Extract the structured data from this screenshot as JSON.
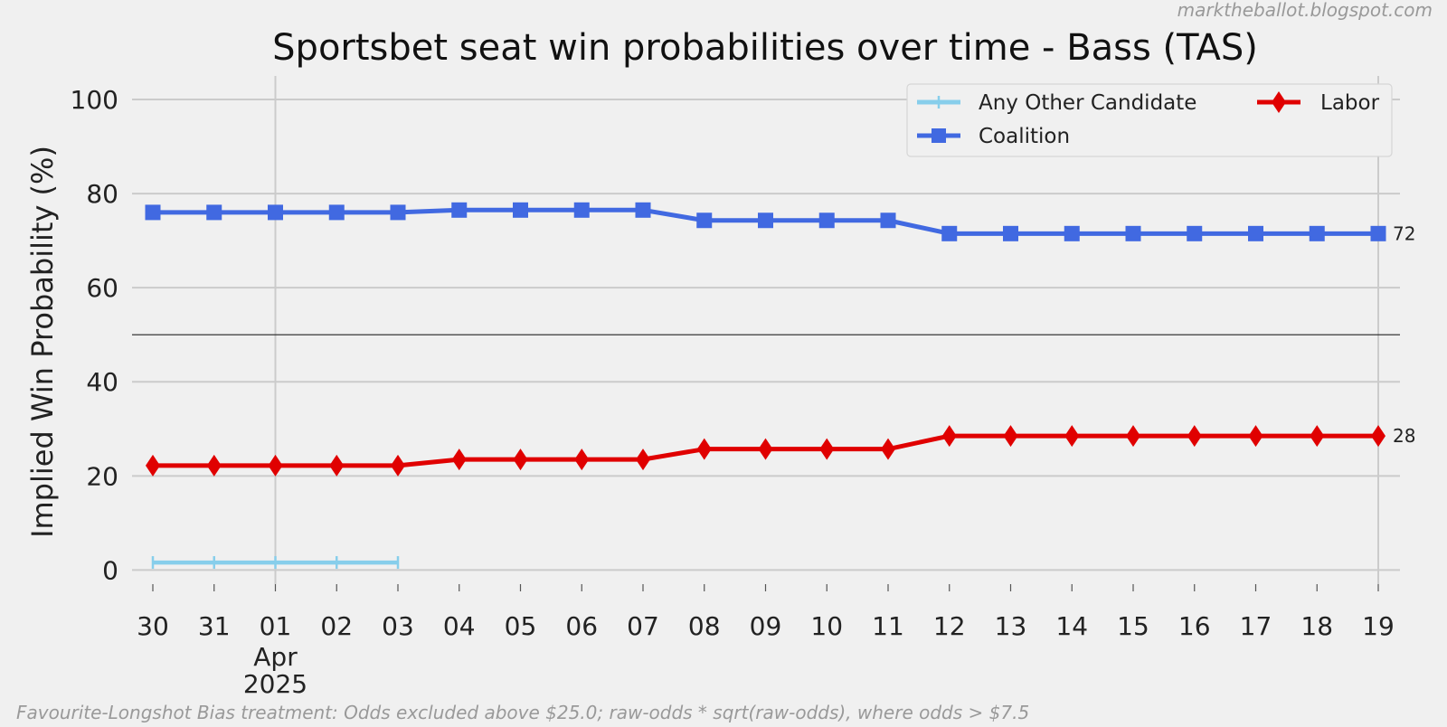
{
  "watermark": "marktheballot.blogspot.com",
  "footnote": "Favourite-Longshot Bias treatment: Odds excluded above $25.0; raw-odds * sqrt(raw-odds), where odds > $7.5",
  "chart_data": {
    "type": "line",
    "title": "Sportsbet seat win probabilities over time - Bass (TAS)",
    "xlabel": "",
    "ylabel": "Implied Win Probability (%)",
    "ylim": [
      -3,
      105
    ],
    "yticks": [
      0,
      20,
      40,
      60,
      80,
      100
    ],
    "reference_line": 50,
    "grid": true,
    "legend_position": "top-right",
    "categories": [
      "30",
      "31",
      "01",
      "02",
      "03",
      "04",
      "05",
      "06",
      "07",
      "08",
      "09",
      "10",
      "11",
      "12",
      "13",
      "14",
      "15",
      "16",
      "17",
      "18",
      "19"
    ],
    "x_secondary_labels": {
      "month": "Apr",
      "year": "2025",
      "under_tick": "01"
    },
    "series": [
      {
        "name": "Any Other Candidate",
        "color": "#87ceeb",
        "marker": "plus",
        "values": [
          1.6,
          1.6,
          1.6,
          1.6,
          1.6,
          null,
          null,
          null,
          null,
          null,
          null,
          null,
          null,
          null,
          null,
          null,
          null,
          null,
          null,
          null,
          null
        ]
      },
      {
        "name": "Coalition",
        "color": "#4169e1",
        "marker": "square",
        "values": [
          76.0,
          76.0,
          76.0,
          76.0,
          76.0,
          76.5,
          76.5,
          76.5,
          76.5,
          74.3,
          74.3,
          74.3,
          74.3,
          71.5,
          71.5,
          71.5,
          71.5,
          71.5,
          71.5,
          71.5,
          71.5
        ],
        "end_label": "72"
      },
      {
        "name": "Labor",
        "color": "#e00000",
        "marker": "diamond",
        "values": [
          22.2,
          22.2,
          22.2,
          22.2,
          22.2,
          23.5,
          23.5,
          23.5,
          23.5,
          25.7,
          25.7,
          25.7,
          25.7,
          28.5,
          28.5,
          28.5,
          28.5,
          28.5,
          28.5,
          28.5,
          28.5
        ],
        "end_label": "28"
      }
    ]
  }
}
